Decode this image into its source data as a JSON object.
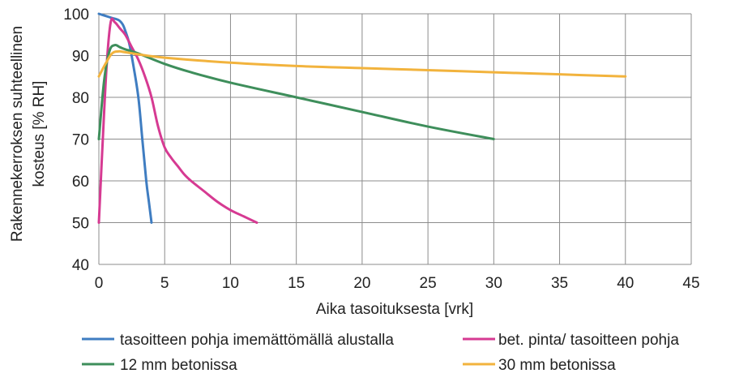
{
  "chart_data": {
    "type": "line",
    "title": "",
    "xlabel": "Aika tasoituksesta [vrk]",
    "ylabel_line1": "Rakennekerroksen suhteellinen",
    "ylabel_line2": "kosteus [% RH]",
    "xlim": [
      0,
      45
    ],
    "ylim": [
      40,
      100
    ],
    "xticks": [
      0,
      5,
      10,
      15,
      20,
      25,
      30,
      35,
      40,
      45
    ],
    "yticks": [
      40,
      50,
      60,
      70,
      80,
      90,
      100
    ],
    "grid": true,
    "legend_position": "bottom",
    "series": [
      {
        "name": "tasoitteen pohja imemättömällä alustalla",
        "color": "#3F7DC1",
        "x": [
          0,
          0.5,
          1,
          1.5,
          1.8,
          2.0,
          2.3,
          2.6,
          3.0,
          3.3,
          3.6,
          3.8,
          4.0
        ],
        "y": [
          100,
          99.5,
          99,
          98.5,
          97.5,
          96,
          93,
          88,
          80,
          70,
          60,
          55,
          50
        ]
      },
      {
        "name": "bet. pinta/ tasoitteen pohja",
        "color": "#D63A92",
        "x": [
          0,
          0.3,
          0.6,
          0.9,
          1.2,
          1.6,
          2.0,
          2.5,
          3.0,
          3.5,
          4.0,
          4.5,
          5.0,
          5.5,
          6.0,
          6.5,
          7.0,
          8.0,
          9.0,
          10.0,
          11.0,
          12.0
        ],
        "y": [
          50,
          70,
          88,
          98,
          98,
          96.5,
          95,
          92,
          89,
          85,
          80,
          73,
          68,
          65.5,
          63.5,
          61.5,
          60,
          57.5,
          55,
          53,
          51.5,
          50
        ]
      },
      {
        "name": "12 mm betonissa",
        "color": "#3E8E5B",
        "x": [
          0,
          0.4,
          0.8,
          1.2,
          1.6,
          2.0,
          3,
          5,
          7,
          10,
          15,
          20,
          25,
          30
        ],
        "y": [
          70,
          84,
          91,
          92.5,
          92,
          91.5,
          90.5,
          88,
          86,
          83.5,
          80,
          76.5,
          73,
          70
        ]
      },
      {
        "name": "30 mm betonissa",
        "color": "#F2B33D",
        "x": [
          0,
          0.5,
          1.0,
          1.5,
          2.0,
          3,
          5,
          10,
          15,
          20,
          25,
          30,
          35,
          40
        ],
        "y": [
          85,
          88,
          90.5,
          91,
          90.8,
          90.3,
          89.5,
          88.3,
          87.5,
          87,
          86.5,
          86,
          85.5,
          85
        ]
      }
    ]
  }
}
